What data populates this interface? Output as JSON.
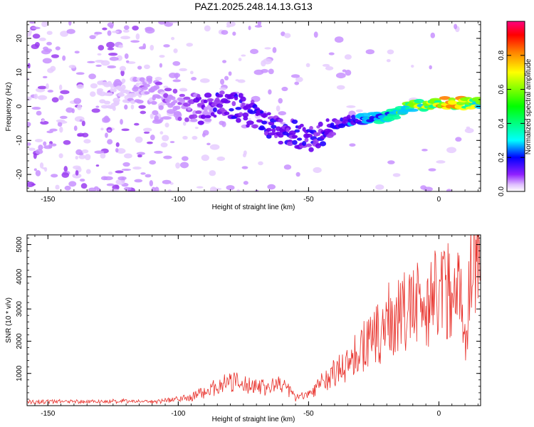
{
  "chart_data": [
    {
      "type": "heatmap",
      "title": "PAZ1.2025.248.14.13.G13",
      "xlabel": "Height of straight line (km)",
      "ylabel": "Frequency (Hz)",
      "xlim": [
        -158,
        16
      ],
      "ylim": [
        -25,
        25
      ],
      "x_ticks": [
        -150,
        -100,
        -50,
        0
      ],
      "y_ticks": [
        -20,
        -10,
        0,
        10,
        20
      ],
      "colorbar": {
        "label": "Normalized spectral amplitude",
        "range": [
          0,
          1
        ],
        "ticks": [
          0.0,
          0.2,
          0.4,
          0.6,
          0.8
        ],
        "tick_labels": [
          "0.0",
          "0.2",
          "0.4",
          "0.6",
          "0.8"
        ],
        "colors": [
          "#ffffff",
          "#c080ff",
          "#8000ff",
          "#0000ff",
          "#00ffff",
          "#00ff00",
          "#ffff00",
          "#ff8000",
          "#ff0000",
          "#ff0080"
        ]
      },
      "ridge": {
        "x": [
          -125,
          -110,
          -100,
          -90,
          -80,
          -70,
          -60,
          -50,
          -40,
          -30,
          -20,
          -10,
          0,
          10,
          16
        ],
        "freq": [
          3,
          5,
          0,
          -1,
          1,
          -3,
          -7,
          -10,
          -5,
          -4,
          -3,
          0,
          1,
          1,
          1
        ],
        "amplitude": [
          0.05,
          0.08,
          0.1,
          0.15,
          0.2,
          0.2,
          0.2,
          0.18,
          0.2,
          0.3,
          0.4,
          0.55,
          0.75,
          0.85,
          0.6
        ]
      }
    },
    {
      "type": "line",
      "xlabel": "Height of straight line (km)",
      "ylabel": "SNR (10 * v/v)",
      "xlim": [
        -158,
        16
      ],
      "ylim": [
        0,
        5300
      ],
      "x_ticks": [
        -150,
        -100,
        -50,
        0
      ],
      "y_ticks": [
        1000,
        2000,
        3000,
        4000,
        5000
      ],
      "color": "#e8302a",
      "envelope": {
        "x": [
          -158,
          -140,
          -110,
          -95,
          -90,
          -85,
          -80,
          -75,
          -70,
          -65,
          -60,
          -55,
          -50,
          -45,
          -40,
          -35,
          -30,
          -25,
          -20,
          -15,
          -10,
          -5,
          0,
          5,
          8,
          10,
          12,
          14,
          16
        ],
        "snr": [
          120,
          130,
          130,
          250,
          450,
          600,
          750,
          650,
          650,
          550,
          700,
          250,
          350,
          700,
          1000,
          1300,
          1800,
          2000,
          2600,
          2800,
          3000,
          3200,
          3500,
          3700,
          3600,
          2000,
          4000,
          4600,
          4000
        ]
      }
    }
  ]
}
